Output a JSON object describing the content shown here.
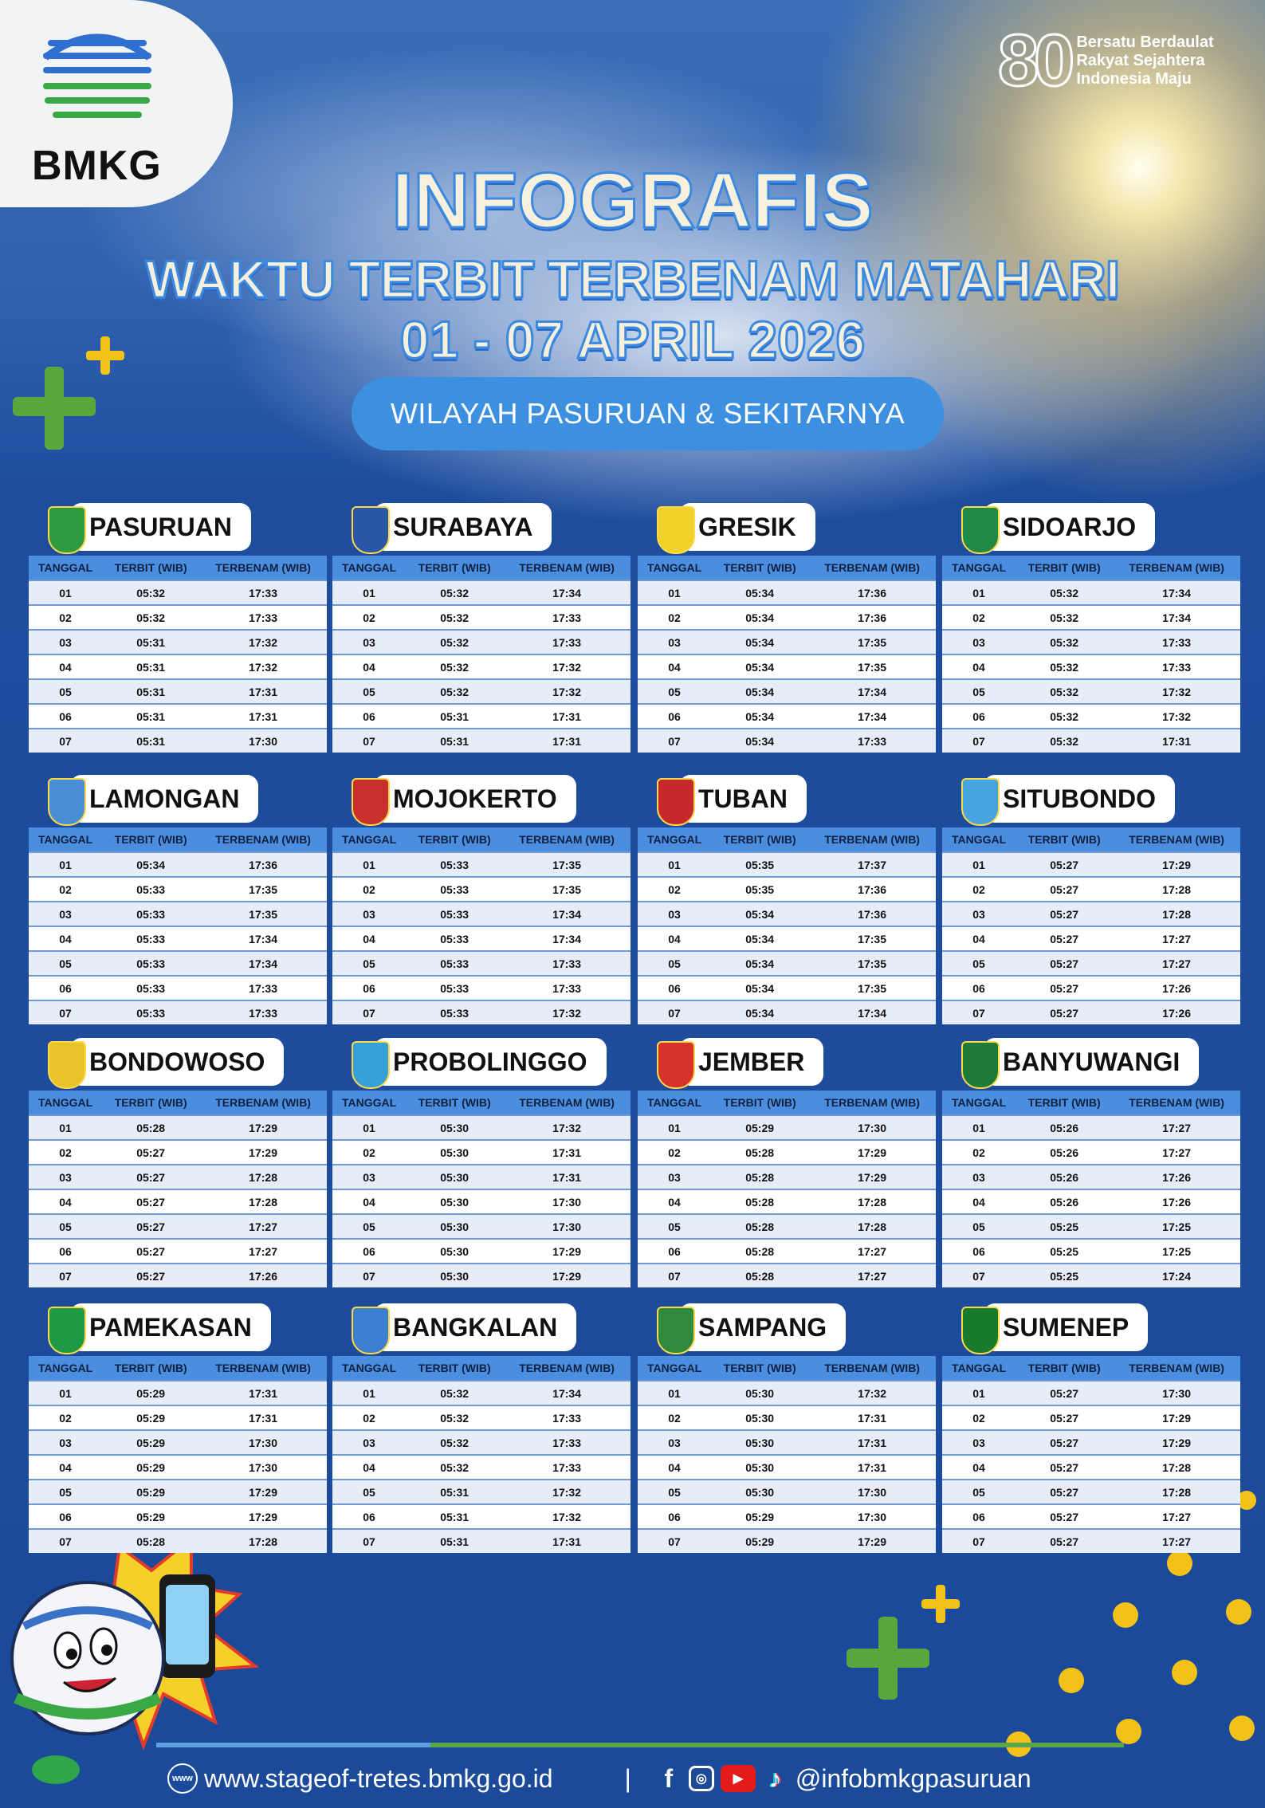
{
  "brand": {
    "logo_text": "BMKG",
    "anniversary_number": "80",
    "anniversary_tagline": [
      "Bersatu Berdaulat",
      "Rakyat Sejahtera",
      "Indonesia Maju"
    ]
  },
  "header": {
    "title": "INFOGRAFIS",
    "subtitle": "WAKTU TERBIT TERBENAM MATAHARI",
    "date_range": "01 - 07 APRIL 2026",
    "region": "WILAYAH PASURUAN & SEKITARNYA"
  },
  "columns": [
    "TANGGAL",
    "TERBIT (WIB)",
    "TERBENAM (WIB)"
  ],
  "regions": [
    {
      "name": "PASURUAN",
      "color": "#2e9b3e",
      "rows": [
        [
          "01",
          "05:32",
          "17:33"
        ],
        [
          "02",
          "05:32",
          "17:33"
        ],
        [
          "03",
          "05:31",
          "17:32"
        ],
        [
          "04",
          "05:31",
          "17:32"
        ],
        [
          "05",
          "05:31",
          "17:31"
        ],
        [
          "06",
          "05:31",
          "17:31"
        ],
        [
          "07",
          "05:31",
          "17:30"
        ]
      ]
    },
    {
      "name": "SURABAYA",
      "color": "#2a56a8",
      "rows": [
        [
          "01",
          "05:32",
          "17:34"
        ],
        [
          "02",
          "05:32",
          "17:33"
        ],
        [
          "03",
          "05:32",
          "17:33"
        ],
        [
          "04",
          "05:32",
          "17:32"
        ],
        [
          "05",
          "05:32",
          "17:32"
        ],
        [
          "06",
          "05:31",
          "17:31"
        ],
        [
          "07",
          "05:31",
          "17:31"
        ]
      ]
    },
    {
      "name": "GRESIK",
      "color": "#f1d12a",
      "rows": [
        [
          "01",
          "05:34",
          "17:36"
        ],
        [
          "02",
          "05:34",
          "17:36"
        ],
        [
          "03",
          "05:34",
          "17:35"
        ],
        [
          "04",
          "05:34",
          "17:35"
        ],
        [
          "05",
          "05:34",
          "17:34"
        ],
        [
          "06",
          "05:34",
          "17:34"
        ],
        [
          "07",
          "05:34",
          "17:33"
        ]
      ]
    },
    {
      "name": "SIDOARJO",
      "color": "#1f8a45",
      "rows": [
        [
          "01",
          "05:32",
          "17:34"
        ],
        [
          "02",
          "05:32",
          "17:34"
        ],
        [
          "03",
          "05:32",
          "17:33"
        ],
        [
          "04",
          "05:32",
          "17:33"
        ],
        [
          "05",
          "05:32",
          "17:32"
        ],
        [
          "06",
          "05:32",
          "17:32"
        ],
        [
          "07",
          "05:32",
          "17:31"
        ]
      ]
    },
    {
      "name": "LAMONGAN",
      "color": "#4a8fd6",
      "rows": [
        [
          "01",
          "05:34",
          "17:36"
        ],
        [
          "02",
          "05:33",
          "17:35"
        ],
        [
          "03",
          "05:33",
          "17:35"
        ],
        [
          "04",
          "05:33",
          "17:34"
        ],
        [
          "05",
          "05:33",
          "17:34"
        ],
        [
          "06",
          "05:33",
          "17:33"
        ],
        [
          "07",
          "05:33",
          "17:33"
        ]
      ]
    },
    {
      "name": "MOJOKERTO",
      "color": "#c9302c",
      "rows": [
        [
          "01",
          "05:33",
          "17:35"
        ],
        [
          "02",
          "05:33",
          "17:35"
        ],
        [
          "03",
          "05:33",
          "17:34"
        ],
        [
          "04",
          "05:33",
          "17:34"
        ],
        [
          "05",
          "05:33",
          "17:33"
        ],
        [
          "06",
          "05:33",
          "17:33"
        ],
        [
          "07",
          "05:33",
          "17:32"
        ]
      ]
    },
    {
      "name": "TUBAN",
      "color": "#c6282b",
      "rows": [
        [
          "01",
          "05:35",
          "17:37"
        ],
        [
          "02",
          "05:35",
          "17:36"
        ],
        [
          "03",
          "05:34",
          "17:36"
        ],
        [
          "04",
          "05:34",
          "17:35"
        ],
        [
          "05",
          "05:34",
          "17:35"
        ],
        [
          "06",
          "05:34",
          "17:35"
        ],
        [
          "07",
          "05:34",
          "17:34"
        ]
      ]
    },
    {
      "name": "SITUBONDO",
      "color": "#46a4e0",
      "rows": [
        [
          "01",
          "05:27",
          "17:29"
        ],
        [
          "02",
          "05:27",
          "17:28"
        ],
        [
          "03",
          "05:27",
          "17:28"
        ],
        [
          "04",
          "05:27",
          "17:27"
        ],
        [
          "05",
          "05:27",
          "17:27"
        ],
        [
          "06",
          "05:27",
          "17:26"
        ],
        [
          "07",
          "05:27",
          "17:26"
        ]
      ]
    },
    {
      "name": "BONDOWOSO",
      "color": "#e8c42a",
      "rows": [
        [
          "01",
          "05:28",
          "17:29"
        ],
        [
          "02",
          "05:27",
          "17:29"
        ],
        [
          "03",
          "05:27",
          "17:28"
        ],
        [
          "04",
          "05:27",
          "17:28"
        ],
        [
          "05",
          "05:27",
          "17:27"
        ],
        [
          "06",
          "05:27",
          "17:27"
        ],
        [
          "07",
          "05:27",
          "17:26"
        ]
      ]
    },
    {
      "name": "PROBOLINGGO",
      "color": "#36a0d8",
      "rows": [
        [
          "01",
          "05:30",
          "17:32"
        ],
        [
          "02",
          "05:30",
          "17:31"
        ],
        [
          "03",
          "05:30",
          "17:31"
        ],
        [
          "04",
          "05:30",
          "17:30"
        ],
        [
          "05",
          "05:30",
          "17:30"
        ],
        [
          "06",
          "05:30",
          "17:29"
        ],
        [
          "07",
          "05:30",
          "17:29"
        ]
      ]
    },
    {
      "name": "JEMBER",
      "color": "#d6332a",
      "rows": [
        [
          "01",
          "05:29",
          "17:30"
        ],
        [
          "02",
          "05:28",
          "17:29"
        ],
        [
          "03",
          "05:28",
          "17:29"
        ],
        [
          "04",
          "05:28",
          "17:28"
        ],
        [
          "05",
          "05:28",
          "17:28"
        ],
        [
          "06",
          "05:28",
          "17:27"
        ],
        [
          "07",
          "05:28",
          "17:27"
        ]
      ]
    },
    {
      "name": "BANYUWANGI",
      "color": "#1e7b3a",
      "rows": [
        [
          "01",
          "05:26",
          "17:27"
        ],
        [
          "02",
          "05:26",
          "17:27"
        ],
        [
          "03",
          "05:26",
          "17:26"
        ],
        [
          "04",
          "05:26",
          "17:26"
        ],
        [
          "05",
          "05:25",
          "17:25"
        ],
        [
          "06",
          "05:25",
          "17:25"
        ],
        [
          "07",
          "05:25",
          "17:24"
        ]
      ]
    },
    {
      "name": "PAMEKASAN",
      "color": "#1f9a44",
      "rows": [
        [
          "01",
          "05:29",
          "17:31"
        ],
        [
          "02",
          "05:29",
          "17:31"
        ],
        [
          "03",
          "05:29",
          "17:30"
        ],
        [
          "04",
          "05:29",
          "17:30"
        ],
        [
          "05",
          "05:29",
          "17:29"
        ],
        [
          "06",
          "05:29",
          "17:29"
        ],
        [
          "07",
          "05:28",
          "17:28"
        ]
      ]
    },
    {
      "name": "BANGKALAN",
      "color": "#3d7fd0",
      "rows": [
        [
          "01",
          "05:32",
          "17:34"
        ],
        [
          "02",
          "05:32",
          "17:33"
        ],
        [
          "03",
          "05:32",
          "17:33"
        ],
        [
          "04",
          "05:32",
          "17:33"
        ],
        [
          "05",
          "05:31",
          "17:32"
        ],
        [
          "06",
          "05:31",
          "17:32"
        ],
        [
          "07",
          "05:31",
          "17:31"
        ]
      ]
    },
    {
      "name": "SAMPANG",
      "color": "#2f8a3e",
      "rows": [
        [
          "01",
          "05:30",
          "17:32"
        ],
        [
          "02",
          "05:30",
          "17:31"
        ],
        [
          "03",
          "05:30",
          "17:31"
        ],
        [
          "04",
          "05:30",
          "17:31"
        ],
        [
          "05",
          "05:30",
          "17:30"
        ],
        [
          "06",
          "05:29",
          "17:30"
        ],
        [
          "07",
          "05:29",
          "17:29"
        ]
      ]
    },
    {
      "name": "SUMENEP",
      "color": "#1a7a2c",
      "rows": [
        [
          "01",
          "05:27",
          "17:30"
        ],
        [
          "02",
          "05:27",
          "17:29"
        ],
        [
          "03",
          "05:27",
          "17:29"
        ],
        [
          "04",
          "05:27",
          "17:28"
        ],
        [
          "05",
          "05:27",
          "17:28"
        ],
        [
          "06",
          "05:27",
          "17:27"
        ],
        [
          "07",
          "05:27",
          "17:27"
        ]
      ]
    }
  ],
  "footer": {
    "website": "www.stageof-tretes.bmkg.go.id",
    "separator": "|",
    "social_handle": "@infobmkgpasuruan",
    "social_icons": [
      "facebook-icon",
      "instagram-icon",
      "youtube-icon",
      "tiktok-icon"
    ]
  },
  "colors": {
    "background": "#1c4a9a",
    "table_header": "#4b8ee0",
    "pill": "#3d8fe0",
    "accent_green": "#5aa83c",
    "accent_yellow": "#f2c219"
  }
}
